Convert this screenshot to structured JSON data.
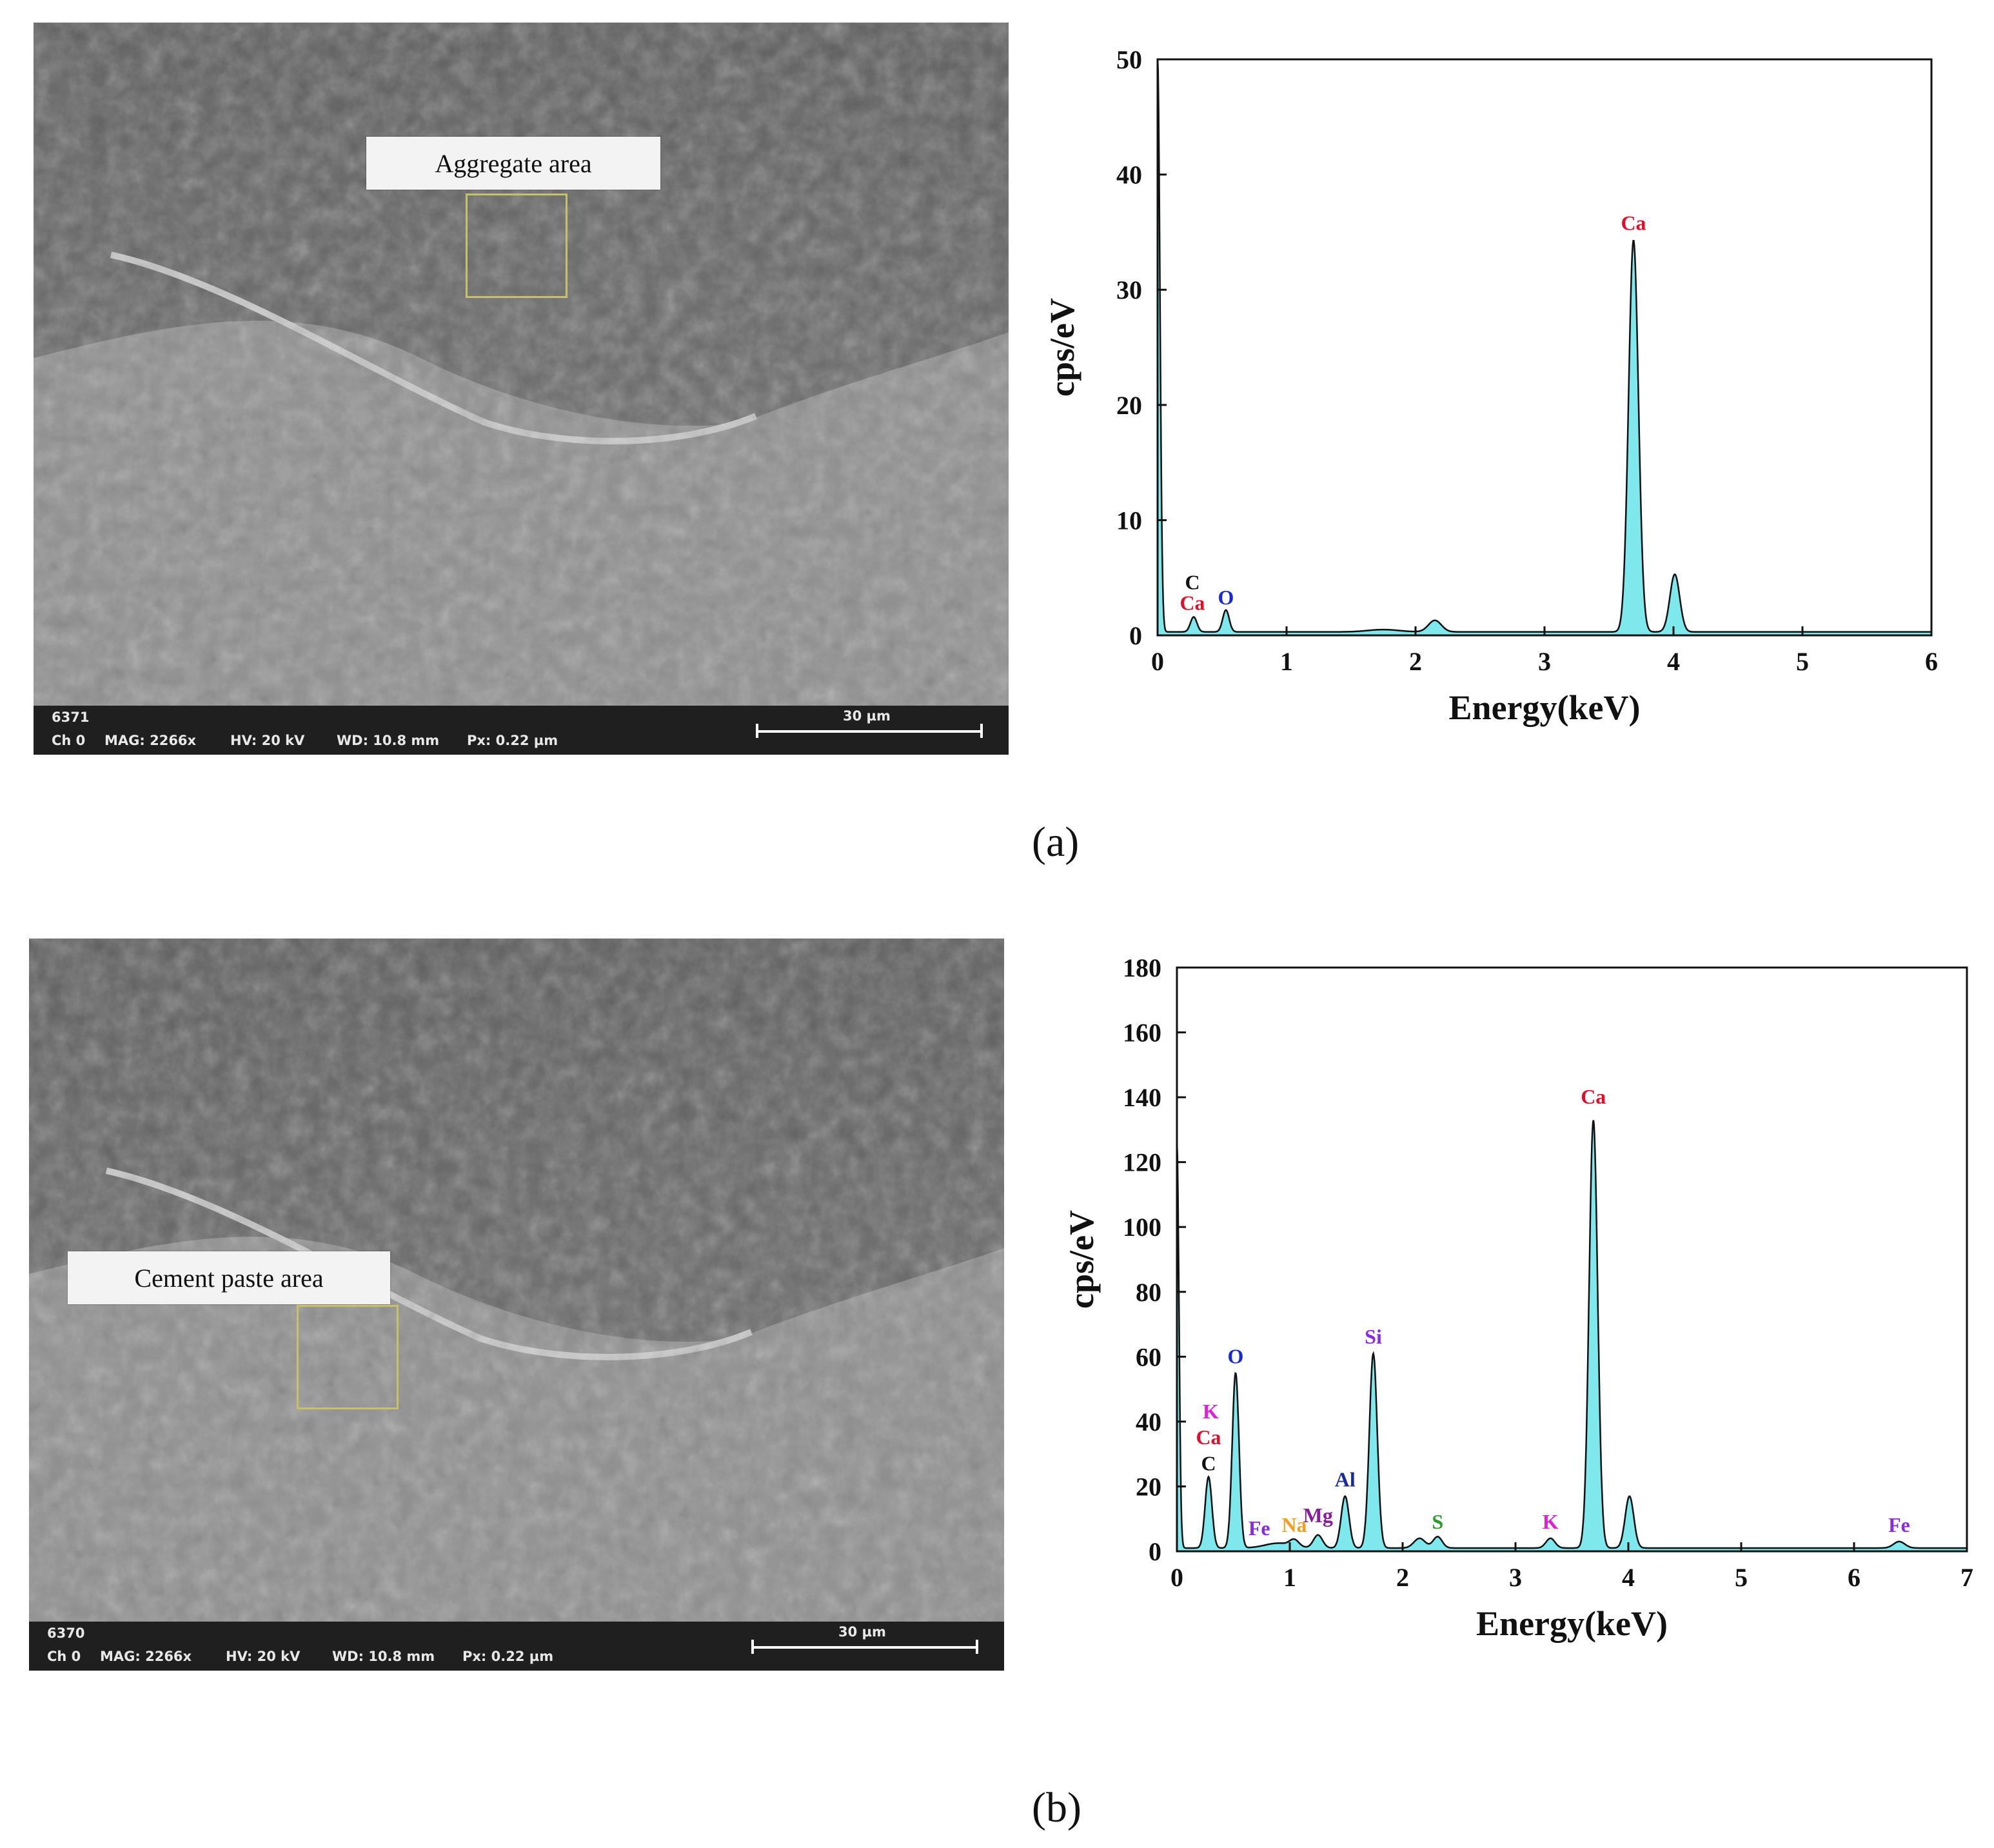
{
  "panels": [
    {
      "sub_label": "(a)",
      "sem": {
        "area_label": "Aggregate area",
        "image_id": "6371",
        "info": [
          "Ch 0",
          "MAG: 2266x",
          "HV: 20 kV",
          "WD: 10.8 mm",
          "Px: 0.22 µm"
        ],
        "scale_text": "30 µm"
      }
    },
    {
      "sub_label": "(b)",
      "sem": {
        "area_label": "Cement paste area",
        "image_id": "6370",
        "info": [
          "Ch 0",
          "MAG: 2266x",
          "HV: 20 kV",
          "WD: 10.8 mm",
          "Px: 0.22 µm"
        ],
        "scale_text": "30 µm"
      }
    }
  ],
  "colors": {
    "fill": "#7fe8ec",
    "line": "#111111",
    "sem_bg": "#6d6d6d"
  },
  "chart_data": [
    {
      "type": "area",
      "xlabel": "Energy(keV)",
      "ylabel": "cps/eV",
      "xlim": [
        0,
        6
      ],
      "ylim": [
        0,
        50
      ],
      "xticks": [
        0,
        1,
        2,
        3,
        4,
        5,
        6
      ],
      "yticks": [
        0,
        10,
        20,
        30,
        40,
        50
      ],
      "baseline": 0.3,
      "peaks": [
        {
          "x": 0.0,
          "h": 50,
          "w": 0.018
        },
        {
          "x": 0.28,
          "h": 1.3,
          "w": 0.025
        },
        {
          "x": 0.53,
          "h": 1.9,
          "w": 0.025
        },
        {
          "x": 1.75,
          "h": 0.2,
          "w": 0.12
        },
        {
          "x": 2.15,
          "h": 1.0,
          "w": 0.05
        },
        {
          "x": 3.69,
          "h": 34.0,
          "w": 0.038
        },
        {
          "x": 4.01,
          "h": 5.0,
          "w": 0.038
        }
      ],
      "annotations": [
        {
          "text": "Ca",
          "x": 3.69,
          "y": 35.2,
          "color": "#e0102a"
        },
        {
          "text": "C",
          "x": 0.27,
          "y": 4.0,
          "color": "#111111"
        },
        {
          "text": "Ca",
          "x": 0.27,
          "y": 2.2,
          "color": "#e0102a"
        },
        {
          "text": "O",
          "x": 0.53,
          "y": 2.7,
          "color": "#1a28d6"
        }
      ]
    },
    {
      "type": "area",
      "xlabel": "Energy(keV)",
      "ylabel": "cps/eV",
      "xlim": [
        0,
        7
      ],
      "ylim": [
        0,
        180
      ],
      "xticks": [
        0,
        1,
        2,
        3,
        4,
        5,
        6,
        7
      ],
      "yticks": [
        0,
        20,
        40,
        60,
        80,
        100,
        120,
        140,
        160,
        180
      ],
      "baseline": 1.0,
      "peaks": [
        {
          "x": 0.0,
          "h": 125,
          "w": 0.018
        },
        {
          "x": 0.28,
          "h": 22,
          "w": 0.03
        },
        {
          "x": 0.52,
          "h": 54,
          "w": 0.03
        },
        {
          "x": 0.9,
          "h": 1.5,
          "w": 0.12
        },
        {
          "x": 1.04,
          "h": 2.0,
          "w": 0.04
        },
        {
          "x": 1.25,
          "h": 4.0,
          "w": 0.04
        },
        {
          "x": 1.49,
          "h": 16,
          "w": 0.035
        },
        {
          "x": 1.74,
          "h": 60,
          "w": 0.035
        },
        {
          "x": 2.15,
          "h": 3.0,
          "w": 0.05
        },
        {
          "x": 2.31,
          "h": 3.5,
          "w": 0.04
        },
        {
          "x": 3.31,
          "h": 3.0,
          "w": 0.04
        },
        {
          "x": 3.69,
          "h": 132,
          "w": 0.038
        },
        {
          "x": 4.01,
          "h": 16,
          "w": 0.038
        },
        {
          "x": 6.4,
          "h": 2.0,
          "w": 0.05
        }
      ],
      "annotations": [
        {
          "text": "Ca",
          "x": 3.69,
          "y": 138,
          "color": "#e0102a"
        },
        {
          "text": "Si",
          "x": 1.74,
          "y": 64,
          "color": "#8a2be2"
        },
        {
          "text": "O",
          "x": 0.52,
          "y": 58,
          "color": "#1a28d6"
        },
        {
          "text": "K",
          "x": 0.3,
          "y": 41,
          "color": "#e020d8"
        },
        {
          "text": "Ca",
          "x": 0.28,
          "y": 33,
          "color": "#e0102a"
        },
        {
          "text": "C",
          "x": 0.28,
          "y": 25,
          "color": "#111111"
        },
        {
          "text": "Al",
          "x": 1.49,
          "y": 20,
          "color": "#1a2a9e"
        },
        {
          "text": "Fe",
          "x": 0.73,
          "y": 5,
          "color": "#8a2be2"
        },
        {
          "text": "Na",
          "x": 1.04,
          "y": 6,
          "color": "#f0a020"
        },
        {
          "text": "Mg",
          "x": 1.25,
          "y": 9,
          "color": "#8a1a9e"
        },
        {
          "text": "S",
          "x": 2.31,
          "y": 7,
          "color": "#2e9a2e"
        },
        {
          "text": "K",
          "x": 3.31,
          "y": 7,
          "color": "#e020d8"
        },
        {
          "text": "Fe",
          "x": 6.4,
          "y": 6,
          "color": "#8a2be2"
        }
      ]
    }
  ]
}
